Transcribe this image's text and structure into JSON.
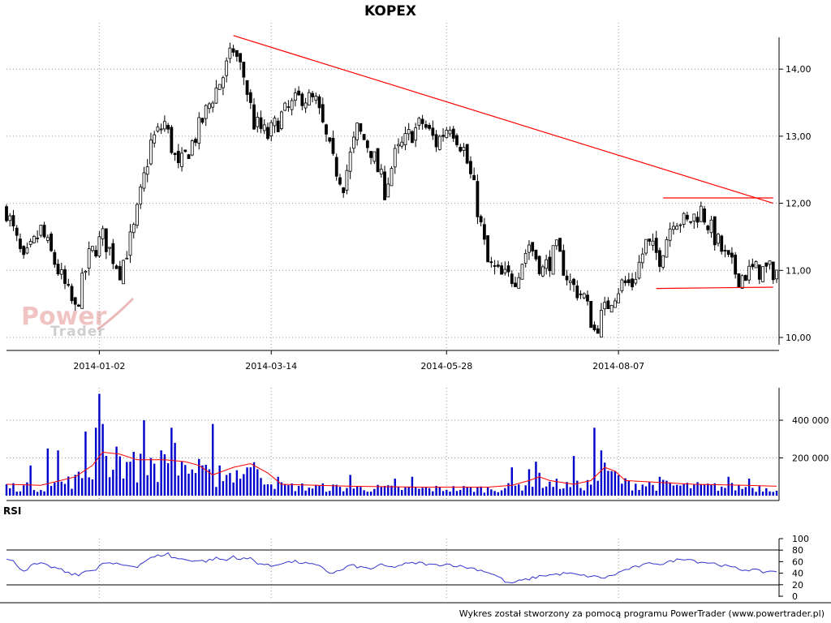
{
  "chart_data": [
    {
      "type": "candlestick",
      "title": "KOPEX",
      "x_tick_labels": [
        "2014-01-02",
        "2014-03-14",
        "2014-05-28",
        "2014-08-07"
      ],
      "y_tick_labels": [
        "10,00",
        "11,00",
        "12,00",
        "13,00",
        "14,00"
      ],
      "ylim": [
        9.9,
        14.55
      ],
      "grid": true,
      "trendlines": [
        {
          "color": "#ff0000",
          "points": [
            [
              66,
              14.5
            ],
            [
              223,
              12.0
            ]
          ]
        },
        {
          "color": "#ff0000",
          "points": [
            [
              191,
              12.08
            ],
            [
              223,
              12.08
            ]
          ]
        },
        {
          "color": "#ff0000",
          "points": [
            [
              189,
              10.73
            ],
            [
              223,
              10.75
            ]
          ]
        }
      ],
      "close_path": [
        [
          0,
          11.9
        ],
        [
          5,
          11.1
        ],
        [
          10,
          11.6
        ],
        [
          15,
          11.0
        ],
        [
          20,
          10.4
        ],
        [
          24,
          11.2
        ],
        [
          28,
          11.5
        ],
        [
          33,
          11.0
        ],
        [
          37,
          11.6
        ],
        [
          42,
          12.9
        ],
        [
          46,
          13.2
        ],
        [
          50,
          12.5
        ],
        [
          55,
          13.0
        ],
        [
          60,
          13.6
        ],
        [
          63,
          13.9
        ],
        [
          66,
          14.3
        ],
        [
          69,
          13.9
        ],
        [
          72,
          13.2
        ],
        [
          76,
          13.0
        ],
        [
          80,
          13.3
        ],
        [
          86,
          13.6
        ],
        [
          90,
          13.5
        ],
        [
          95,
          12.6
        ],
        [
          98,
          12.3
        ],
        [
          102,
          13.1
        ],
        [
          106,
          12.8
        ],
        [
          110,
          12.2
        ],
        [
          113,
          12.7
        ],
        [
          117,
          13.0
        ],
        [
          121,
          13.2
        ],
        [
          125,
          12.9
        ],
        [
          129,
          13.2
        ],
        [
          133,
          12.8
        ],
        [
          136,
          12.2
        ],
        [
          140,
          11.1
        ],
        [
          144,
          10.9
        ],
        [
          148,
          10.9
        ],
        [
          152,
          11.4
        ],
        [
          156,
          11.0
        ],
        [
          160,
          11.3
        ],
        [
          164,
          10.8
        ],
        [
          168,
          10.6
        ],
        [
          171,
          10.1
        ],
        [
          173,
          10.3
        ],
        [
          176,
          10.6
        ],
        [
          179,
          10.8
        ],
        [
          182,
          10.8
        ],
        [
          186,
          11.4
        ],
        [
          190,
          11.2
        ],
        [
          194,
          11.8
        ],
        [
          198,
          11.7
        ],
        [
          202,
          11.9
        ],
        [
          205,
          11.6
        ],
        [
          209,
          11.2
        ],
        [
          213,
          10.9
        ],
        [
          217,
          11.0
        ],
        [
          221,
          11.0
        ]
      ],
      "lows": [
        [
          0,
          11.5
        ],
        [
          3,
          11.0
        ],
        [
          8,
          11.4
        ],
        [
          12,
          10.6
        ],
        [
          17,
          10.2
        ],
        [
          20,
          10.2
        ],
        [
          24,
          10.8
        ],
        [
          30,
          11.0
        ],
        [
          37,
          11.1
        ],
        [
          40,
          11.6
        ],
        [
          44,
          12.3
        ],
        [
          48,
          12.4
        ],
        [
          52,
          12.2
        ],
        [
          57,
          12.4
        ],
        [
          60,
          12.9
        ],
        [
          64,
          13.1
        ],
        [
          69,
          13.0
        ],
        [
          72,
          12.7
        ],
        [
          76,
          12.7
        ],
        [
          80,
          12.8
        ],
        [
          86,
          13.3
        ],
        [
          93,
          12.3
        ],
        [
          98,
          11.9
        ],
        [
          100,
          12.0
        ],
        [
          104,
          12.6
        ],
        [
          108,
          12.4
        ],
        [
          112,
          12.3
        ],
        [
          116,
          12.6
        ],
        [
          120,
          12.8
        ],
        [
          124,
          12.7
        ],
        [
          128,
          12.8
        ],
        [
          132,
          12.4
        ],
        [
          136,
          11.7
        ],
        [
          138,
          11.0
        ],
        [
          141,
          10.3
        ],
        [
          145,
          10.7
        ],
        [
          149,
          10.8
        ],
        [
          152,
          11.1
        ],
        [
          156,
          10.8
        ],
        [
          160,
          10.9
        ],
        [
          164,
          10.7
        ],
        [
          168,
          10.4
        ],
        [
          170,
          9.9
        ],
        [
          172,
          10.1
        ],
        [
          176,
          10.5
        ],
        [
          179,
          10.6
        ],
        [
          182,
          10.7
        ],
        [
          186,
          11.0
        ],
        [
          188,
          10.7
        ],
        [
          192,
          11.1
        ],
        [
          196,
          11.2
        ],
        [
          200,
          11.6
        ],
        [
          204,
          11.4
        ],
        [
          208,
          11.0
        ],
        [
          213,
          10.8
        ],
        [
          217,
          10.8
        ],
        [
          221,
          10.7
        ]
      ],
      "highs": [
        [
          0,
          12.2
        ],
        [
          3,
          11.9
        ],
        [
          8,
          12.0
        ],
        [
          12,
          11.7
        ],
        [
          16,
          11.2
        ],
        [
          20,
          11.0
        ],
        [
          24,
          11.9
        ],
        [
          27,
          12.1
        ],
        [
          30,
          11.8
        ],
        [
          34,
          11.6
        ],
        [
          37,
          12.1
        ],
        [
          40,
          12.9
        ],
        [
          43,
          13.3
        ],
        [
          46,
          13.4
        ],
        [
          50,
          13.1
        ],
        [
          54,
          13.3
        ],
        [
          58,
          13.6
        ],
        [
          62,
          14.3
        ],
        [
          64,
          14.4
        ],
        [
          66,
          14.5
        ],
        [
          68,
          14.0
        ],
        [
          72,
          13.6
        ],
        [
          76,
          13.4
        ],
        [
          80,
          13.6
        ],
        [
          84,
          13.8
        ],
        [
          88,
          13.7
        ],
        [
          92,
          13.6
        ],
        [
          96,
          13.1
        ],
        [
          98,
          12.6
        ],
        [
          101,
          13.3
        ],
        [
          104,
          13.1
        ],
        [
          108,
          12.6
        ],
        [
          112,
          12.9
        ],
        [
          116,
          13.3
        ],
        [
          120,
          13.4
        ],
        [
          124,
          13.3
        ],
        [
          128,
          13.4
        ],
        [
          132,
          13.0
        ],
        [
          134,
          12.8
        ],
        [
          137,
          12.5
        ],
        [
          140,
          11.5
        ],
        [
          143,
          11.3
        ],
        [
          147,
          11.2
        ],
        [
          150,
          11.6
        ],
        [
          154,
          11.3
        ],
        [
          158,
          11.3
        ],
        [
          162,
          11.5
        ],
        [
          166,
          11.3
        ],
        [
          168,
          11.0
        ],
        [
          170,
          10.4
        ],
        [
          172,
          10.6
        ],
        [
          175,
          10.9
        ],
        [
          178,
          11.0
        ],
        [
          181,
          11.0
        ],
        [
          185,
          11.7
        ],
        [
          188,
          11.6
        ],
        [
          191,
          12.0
        ],
        [
          195,
          12.1
        ],
        [
          199,
          12.1
        ],
        [
          203,
          12.0
        ],
        [
          206,
          11.8
        ],
        [
          210,
          11.5
        ],
        [
          213,
          11.3
        ],
        [
          216,
          11.2
        ],
        [
          220,
          11.1
        ],
        [
          223,
          11.0
        ]
      ]
    },
    {
      "type": "bar",
      "series": [
        {
          "name": "volume",
          "color": "#0000cc"
        },
        {
          "name": "moving average",
          "color": "#ff0000"
        }
      ],
      "y_tick_labels": [
        "200 000",
        "400 000"
      ],
      "ylim": [
        0,
        600000
      ],
      "grid": true,
      "spikes": [
        [
          7,
          160000
        ],
        [
          12,
          250000
        ],
        [
          15,
          240000
        ],
        [
          23,
          340000
        ],
        [
          26,
          360000
        ],
        [
          27,
          540000
        ],
        [
          28,
          380000
        ],
        [
          32,
          260000
        ],
        [
          36,
          180000
        ],
        [
          40,
          400000
        ],
        [
          42,
          200000
        ],
        [
          45,
          240000
        ],
        [
          48,
          360000
        ],
        [
          49,
          280000
        ],
        [
          51,
          180000
        ],
        [
          60,
          380000
        ],
        [
          62,
          160000
        ],
        [
          71,
          150000
        ],
        [
          73,
          140000
        ],
        [
          79,
          100000
        ],
        [
          100,
          110000
        ],
        [
          113,
          90000
        ],
        [
          118,
          100000
        ],
        [
          147,
          150000
        ],
        [
          152,
          140000
        ],
        [
          154,
          180000
        ],
        [
          165,
          210000
        ],
        [
          171,
          360000
        ],
        [
          173,
          240000
        ],
        [
          176,
          130000
        ],
        [
          190,
          100000
        ],
        [
          210,
          100000
        ],
        [
          216,
          90000
        ]
      ],
      "ma_path": [
        [
          0,
          60000
        ],
        [
          10,
          55000
        ],
        [
          20,
          100000
        ],
        [
          25,
          160000
        ],
        [
          28,
          230000
        ],
        [
          33,
          220000
        ],
        [
          38,
          190000
        ],
        [
          46,
          190000
        ],
        [
          52,
          180000
        ],
        [
          56,
          160000
        ],
        [
          60,
          110000
        ],
        [
          66,
          150000
        ],
        [
          71,
          170000
        ],
        [
          76,
          120000
        ],
        [
          80,
          60000
        ],
        [
          100,
          50000
        ],
        [
          120,
          45000
        ],
        [
          140,
          45000
        ],
        [
          147,
          55000
        ],
        [
          152,
          80000
        ],
        [
          155,
          100000
        ],
        [
          158,
          80000
        ],
        [
          165,
          60000
        ],
        [
          170,
          80000
        ],
        [
          174,
          150000
        ],
        [
          177,
          130000
        ],
        [
          180,
          80000
        ],
        [
          190,
          70000
        ],
        [
          200,
          60000
        ],
        [
          215,
          55000
        ],
        [
          224,
          50000
        ]
      ]
    },
    {
      "type": "line",
      "title": "RSI",
      "series": [
        {
          "name": "RSI",
          "color": "#3333cc"
        }
      ],
      "y_tick_labels": [
        "0",
        "20",
        "40",
        "60",
        "80",
        "100"
      ],
      "ylim": [
        0,
        100
      ],
      "reference_lines": [
        20,
        80
      ],
      "path": [
        [
          0,
          64
        ],
        [
          2,
          60
        ],
        [
          5,
          44
        ],
        [
          8,
          55
        ],
        [
          10,
          56
        ],
        [
          13,
          51
        ],
        [
          15,
          48
        ],
        [
          18,
          40
        ],
        [
          21,
          36
        ],
        [
          23,
          46
        ],
        [
          26,
          44
        ],
        [
          28,
          58
        ],
        [
          31,
          56
        ],
        [
          34,
          54
        ],
        [
          38,
          52
        ],
        [
          41,
          64
        ],
        [
          44,
          70
        ],
        [
          47,
          74
        ],
        [
          48,
          68
        ],
        [
          51,
          64
        ],
        [
          55,
          62
        ],
        [
          58,
          61
        ],
        [
          61,
          66
        ],
        [
          64,
          62
        ],
        [
          66,
          70
        ],
        [
          68,
          64
        ],
        [
          71,
          66
        ],
        [
          73,
          58
        ],
        [
          77,
          52
        ],
        [
          80,
          58
        ],
        [
          84,
          60
        ],
        [
          88,
          56
        ],
        [
          92,
          50
        ],
        [
          94,
          40
        ],
        [
          97,
          44
        ],
        [
          100,
          54
        ],
        [
          103,
          50
        ],
        [
          106,
          48
        ],
        [
          109,
          54
        ],
        [
          112,
          50
        ],
        [
          116,
          56
        ],
        [
          120,
          58
        ],
        [
          124,
          54
        ],
        [
          128,
          56
        ],
        [
          132,
          52
        ],
        [
          136,
          48
        ],
        [
          140,
          42
        ],
        [
          143,
          34
        ],
        [
          146,
          22
        ],
        [
          149,
          26
        ],
        [
          152,
          30
        ],
        [
          156,
          36
        ],
        [
          160,
          38
        ],
        [
          163,
          40
        ],
        [
          167,
          36
        ],
        [
          171,
          34
        ],
        [
          174,
          32
        ],
        [
          177,
          38
        ],
        [
          180,
          46
        ],
        [
          184,
          52
        ],
        [
          188,
          58
        ],
        [
          191,
          56
        ],
        [
          194,
          62
        ],
        [
          198,
          66
        ],
        [
          201,
          60
        ],
        [
          205,
          58
        ],
        [
          208,
          54
        ],
        [
          211,
          50
        ],
        [
          214,
          46
        ],
        [
          217,
          46
        ],
        [
          220,
          42
        ],
        [
          223,
          44
        ]
      ]
    }
  ],
  "footer": {
    "credit": "Wykres został stworzony za pomocą programu PowerTrader (www.powertrader.pl)"
  },
  "watermark": {
    "line1": "Power",
    "line2": "Trader"
  },
  "colors": {
    "up": "#ffffff",
    "down": "#000000",
    "volume": "#0000cc",
    "trend": "#ff0000"
  }
}
